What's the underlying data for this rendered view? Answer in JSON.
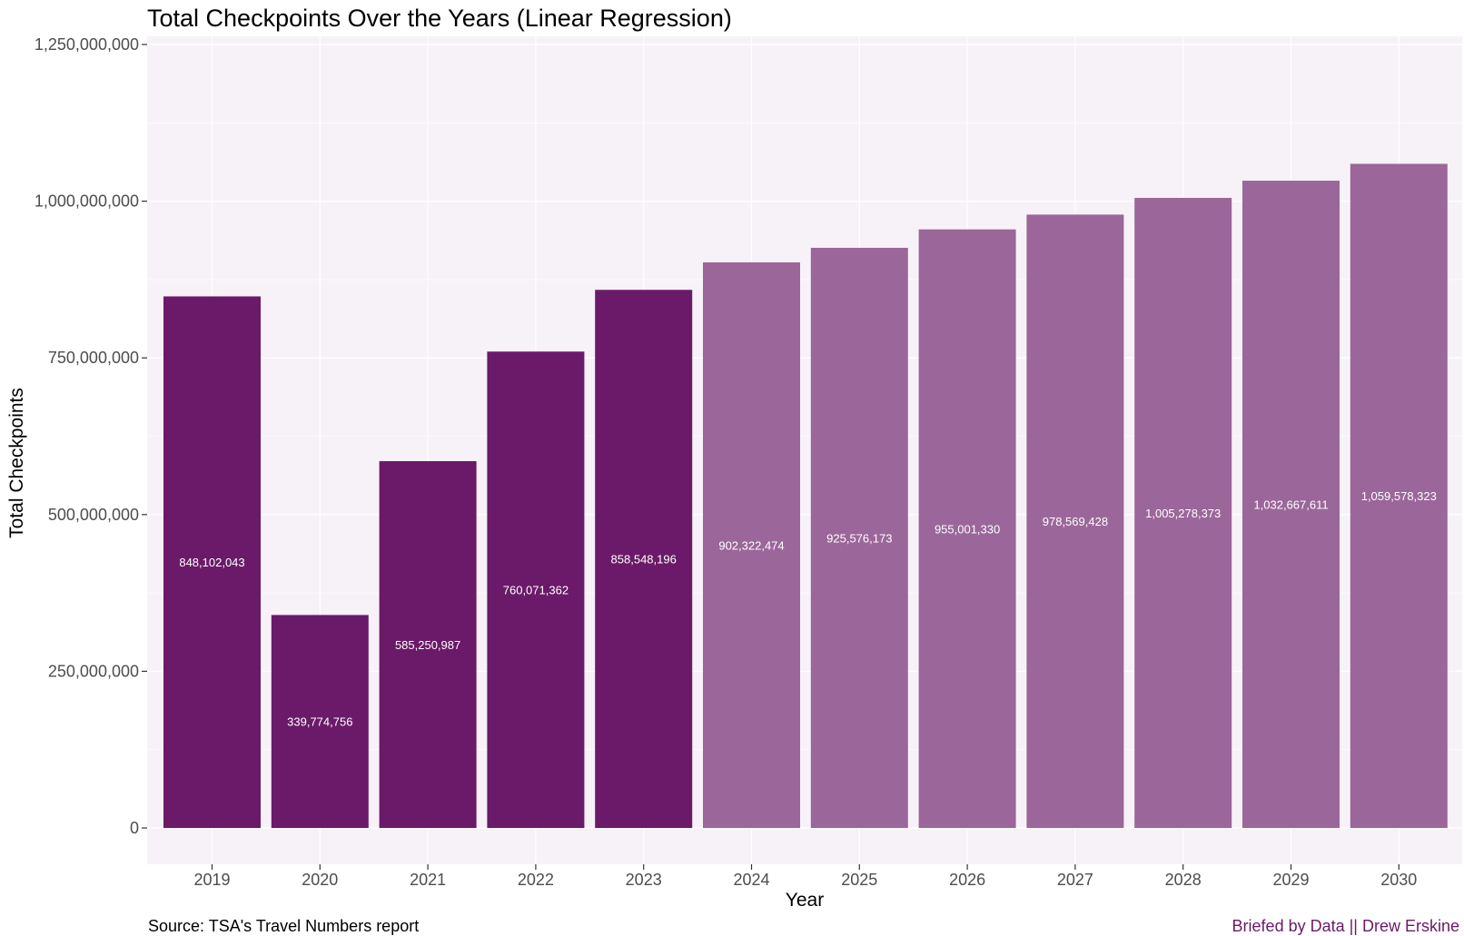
{
  "chart_data": {
    "type": "bar",
    "title": "Total Checkpoints Over the Years (Linear Regression)",
    "xlabel": "Year",
    "ylabel": "Total Checkpoints",
    "categories": [
      "2019",
      "2020",
      "2021",
      "2022",
      "2023",
      "2024",
      "2025",
      "2026",
      "2027",
      "2028",
      "2029",
      "2030"
    ],
    "values": [
      848102043,
      339774756,
      585250987,
      760071362,
      858548196,
      902322474,
      925576173,
      955001330,
      978569428,
      1005278373,
      1032667611,
      1059578323
    ],
    "value_labels": [
      "848,102,043",
      "339,774,756",
      "585,250,987",
      "760,071,362",
      "858,548,196",
      "902,322,474",
      "925,576,173",
      "955,001,330",
      "978,569,428",
      "1,005,278,373",
      "1,032,667,611",
      "1,059,578,323"
    ],
    "bar_colors": [
      "#6a1a68",
      "#6a1a68",
      "#6a1a68",
      "#6a1a68",
      "#6a1a68",
      "#9b669a",
      "#9b669a",
      "#9b669a",
      "#9b669a",
      "#9b669a",
      "#9b669a",
      "#9b669a"
    ],
    "ylim": [
      0,
      1250000000
    ],
    "yticks": [
      0,
      250000000,
      500000000,
      750000000,
      1000000000,
      1250000000
    ],
    "ytick_labels": [
      "0",
      "250,000,000",
      "500,000,000",
      "750,000,000",
      "1,000,000,000",
      "1,250,000,000"
    ],
    "grid": true,
    "legend": "none",
    "panel_background": "#f7f2f7",
    "caption_left": "Source: TSA's Travel Numbers report",
    "caption_right": "Briefed by Data || Drew Erskine",
    "caption_right_color": "#6a1a68"
  }
}
